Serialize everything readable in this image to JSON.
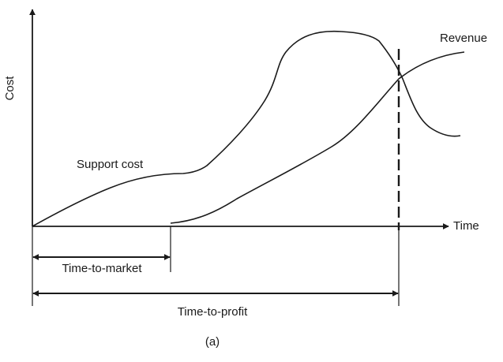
{
  "labels": {
    "y_axis": "Cost",
    "x_axis": "Time",
    "revenue": "Revenue",
    "support_cost": "Support cost",
    "time_to_market": "Time-to-market",
    "time_to_profit": "Time-to-profit",
    "caption": "(a)"
  },
  "colors": {
    "ink": "#1a1a1a",
    "background": "#ffffff"
  }
}
